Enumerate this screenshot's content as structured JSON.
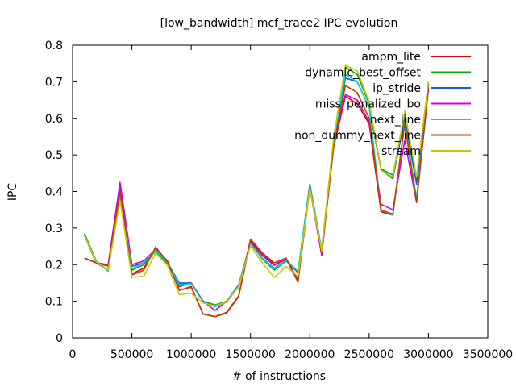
{
  "chart_data": {
    "type": "line",
    "title": "[low_bandwidth] mcf_trace2 IPC evolution",
    "xlabel": "# of instructions",
    "ylabel": "IPC",
    "xlim": [
      0,
      3500000
    ],
    "ylim": [
      0,
      0.8
    ],
    "xticks": [
      0,
      500000,
      1000000,
      1500000,
      2000000,
      2500000,
      3000000,
      3500000
    ],
    "yticks": [
      0,
      0.1,
      0.2,
      0.3,
      0.4,
      0.5,
      0.6,
      0.7,
      0.8
    ],
    "legend_position": "top-right",
    "grid": false,
    "x": [
      100000,
      200000,
      300000,
      400000,
      500000,
      600000,
      700000,
      800000,
      900000,
      1000000,
      1100000,
      1200000,
      1300000,
      1400000,
      1500000,
      1600000,
      1700000,
      1800000,
      1900000,
      2000000,
      2100000,
      2200000,
      2300000,
      2400000,
      2500000,
      2600000,
      2700000,
      2800000,
      2900000,
      3000000
    ],
    "series": [
      {
        "name": "ampm_lite",
        "color": "#e00000",
        "values": [
          0.218,
          0.205,
          0.196,
          0.405,
          0.175,
          0.19,
          0.245,
          0.21,
          0.13,
          0.14,
          0.065,
          0.058,
          0.068,
          0.113,
          0.265,
          0.23,
          0.2,
          0.215,
          0.155,
          0.415,
          0.235,
          0.52,
          0.66,
          0.64,
          0.585,
          0.345,
          0.335,
          0.59,
          0.375,
          0.69
        ]
      },
      {
        "name": "dynamic_best_offset",
        "color": "#00b000",
        "values": [
          0.285,
          0.21,
          0.182,
          0.39,
          0.185,
          0.2,
          0.238,
          0.2,
          0.148,
          0.15,
          0.1,
          0.09,
          0.1,
          0.14,
          0.258,
          0.215,
          0.185,
          0.21,
          0.18,
          0.42,
          0.24,
          0.54,
          0.74,
          0.72,
          0.64,
          0.462,
          0.445,
          0.61,
          0.43,
          0.7
        ]
      },
      {
        "name": "ip_stride",
        "color": "#1060d0",
        "values": [
          0.28,
          0.205,
          0.185,
          0.41,
          0.195,
          0.205,
          0.24,
          0.205,
          0.15,
          0.15,
          0.1,
          0.085,
          0.1,
          0.145,
          0.26,
          0.218,
          0.19,
          0.212,
          0.178,
          0.42,
          0.24,
          0.53,
          0.71,
          0.7,
          0.63,
          0.46,
          0.435,
          0.6,
          0.42,
          0.695
        ]
      },
      {
        "name": "miss_penalized_bo",
        "color": "#d000e0",
        "values": [
          0.218,
          0.205,
          0.2,
          0.425,
          0.2,
          0.21,
          0.242,
          0.205,
          0.14,
          0.15,
          0.1,
          0.075,
          0.1,
          0.14,
          0.262,
          0.225,
          0.198,
          0.215,
          0.16,
          0.41,
          0.225,
          0.53,
          0.665,
          0.65,
          0.59,
          0.365,
          0.35,
          0.54,
          0.37,
          0.68
        ]
      },
      {
        "name": "next_line",
        "color": "#00d0d0",
        "values": [
          0.28,
          0.208,
          0.183,
          0.395,
          0.188,
          0.205,
          0.24,
          0.205,
          0.145,
          0.148,
          0.098,
          0.085,
          0.098,
          0.142,
          0.258,
          0.217,
          0.188,
          0.212,
          0.182,
          0.418,
          0.238,
          0.535,
          0.72,
          0.7,
          0.63,
          0.35,
          0.335,
          0.59,
          0.38,
          0.69
        ]
      },
      {
        "name": "non_dummy_next_line",
        "color": "#c04000",
        "values": [
          0.218,
          0.205,
          0.196,
          0.4,
          0.172,
          0.185,
          0.248,
          0.208,
          0.13,
          0.138,
          0.065,
          0.058,
          0.07,
          0.115,
          0.27,
          0.232,
          0.205,
          0.218,
          0.152,
          0.412,
          0.232,
          0.52,
          0.69,
          0.67,
          0.6,
          0.35,
          0.338,
          0.585,
          0.37,
          0.685
        ]
      },
      {
        "name": "stream",
        "color": "#c8c800",
        "values": [
          0.28,
          0.208,
          0.185,
          0.375,
          0.165,
          0.168,
          0.232,
          0.198,
          0.118,
          0.122,
          0.095,
          0.088,
          0.098,
          0.14,
          0.252,
          0.205,
          0.165,
          0.195,
          0.168,
          0.408,
          0.238,
          0.545,
          0.745,
          0.73,
          0.645,
          0.458,
          0.44,
          0.62,
          0.44,
          0.7
        ]
      }
    ]
  }
}
